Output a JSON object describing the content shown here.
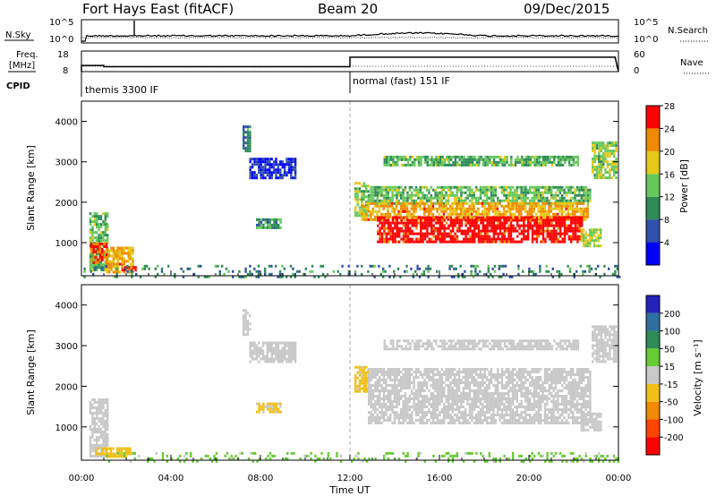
{
  "header": {
    "station": "Fort Hays East (fitACF)",
    "beam": "Beam 20",
    "date": "09/Dec/2015"
  },
  "noise_panel": {
    "left_label": "N.Sky",
    "left_ticks": [
      "10^5",
      "10^0"
    ],
    "right_ticks": [
      "10^5",
      "10^0"
    ],
    "right_label": "N.Search"
  },
  "freq_panel": {
    "left_label_line1": "Freq.",
    "left_label_line2": "[MHz]",
    "left_ticks": [
      "18",
      "8"
    ],
    "right_ticks": [
      "60",
      "0"
    ],
    "right_label": "Nave",
    "freq_steps": [
      {
        "t_start": 0.0,
        "t_end": 1.0,
        "freq_mhz": 11.0
      },
      {
        "t_start": 1.0,
        "t_end": 12.0,
        "freq_mhz": 10.4
      },
      {
        "t_start": 12.0,
        "t_end": 23.85,
        "freq_mhz": 15.0
      }
    ]
  },
  "cpid": {
    "label": "CPID",
    "modes": [
      {
        "start_hour": 0.0,
        "text": "themis 3300 IF"
      },
      {
        "start_hour": 12.0,
        "text": "normal (fast) 151 IF"
      }
    ]
  },
  "chart_data": [
    {
      "type": "heatmap",
      "panel": "power",
      "ylabel": "Slant Range [km]",
      "xlim_hours": [
        0,
        24
      ],
      "ylim_km": [
        180,
        4500
      ],
      "y_ticks": [
        "1000",
        "2000",
        "3000",
        "4000"
      ],
      "colorbar": {
        "label": "Power [dB]",
        "ticks": [
          "4",
          "8",
          "12",
          "16",
          "20",
          "24",
          "28"
        ],
        "range": [
          0,
          30
        ],
        "colors": [
          "#0000ff",
          "#2f4fa8",
          "#2e8b57",
          "#66c85a",
          "#e6c818",
          "#f08a00",
          "#ff0000"
        ]
      },
      "regions": [
        {
          "t": [
            0.35,
            1.2
          ],
          "r": [
            300,
            1750
          ],
          "value": 14
        },
        {
          "t": [
            1.1,
            2.3
          ],
          "r": [
            300,
            900
          ],
          "value": 22
        },
        {
          "t": [
            1.8,
            2.4
          ],
          "r": [
            300,
            420
          ],
          "value": 29
        },
        {
          "t": [
            0.4,
            1.1
          ],
          "r": [
            500,
            1000
          ],
          "value": 26
        },
        {
          "t": [
            7.2,
            7.5
          ],
          "r": [
            3300,
            3900
          ],
          "value": 9
        },
        {
          "t": [
            7.5,
            9.6
          ],
          "r": [
            2600,
            3100
          ],
          "value": 4
        },
        {
          "t": [
            7.8,
            8.9
          ],
          "r": [
            1350,
            1600
          ],
          "value": 12
        },
        {
          "t": [
            12.2,
            12.8
          ],
          "r": [
            1700,
            2500
          ],
          "value": 16
        },
        {
          "t": [
            12.8,
            22.7
          ],
          "r": [
            2000,
            2400
          ],
          "value": 14
        },
        {
          "t": [
            12.5,
            22.6
          ],
          "r": [
            1600,
            2000
          ],
          "value": 22
        },
        {
          "t": [
            13.2,
            22.4
          ],
          "r": [
            1050,
            1650
          ],
          "value": 29
        },
        {
          "t": [
            13.5,
            22.2
          ],
          "r": [
            2900,
            3150
          ],
          "value": 14
        },
        {
          "t": [
            22.3,
            23.2
          ],
          "r": [
            900,
            1350
          ],
          "value": 17
        },
        {
          "t": [
            22.8,
            23.9
          ],
          "r": [
            2600,
            3500
          ],
          "value": 16
        },
        {
          "t": [
            0.0,
            24.0
          ],
          "r": [
            180,
            450
          ],
          "value": 10
        }
      ]
    },
    {
      "type": "heatmap",
      "panel": "velocity",
      "ylabel": "Slant Range [km]",
      "xlabel": "Time UT",
      "xlim_hours": [
        0,
        24
      ],
      "ylim_km": [
        180,
        4500
      ],
      "x_ticks": [
        "00:00",
        "04:00",
        "08:00",
        "12:00",
        "16:00",
        "20:00",
        "00:00"
      ],
      "y_ticks": [
        "1000",
        "2000",
        "3000",
        "4000"
      ],
      "colorbar": {
        "label": "Velocity [m s⁻¹]",
        "ticks": [
          "200",
          "100",
          "50",
          "15",
          "-15",
          "-50",
          "-100",
          "-200"
        ],
        "range": [
          -250,
          250
        ],
        "colors": [
          "#2222bb",
          "#2f6f9f",
          "#2e8b57",
          "#66cc33",
          "#c8c8c8",
          "#f0c018",
          "#f08a00",
          "#ff4400",
          "#ff0000"
        ]
      },
      "regions": [
        {
          "t": [
            0.35,
            1.2
          ],
          "r": [
            300,
            1700
          ],
          "value": 0
        },
        {
          "t": [
            0.6,
            2.2
          ],
          "r": [
            300,
            500
          ],
          "value": 40
        },
        {
          "t": [
            7.2,
            7.5
          ],
          "r": [
            3300,
            3900
          ],
          "value": 0
        },
        {
          "t": [
            7.5,
            9.6
          ],
          "r": [
            2600,
            3100
          ],
          "value": 0
        },
        {
          "t": [
            7.8,
            8.9
          ],
          "r": [
            1350,
            1600
          ],
          "value": 35
        },
        {
          "t": [
            12.2,
            12.8
          ],
          "r": [
            1900,
            2500
          ],
          "value": 40
        },
        {
          "t": [
            12.8,
            22.7
          ],
          "r": [
            1100,
            2450
          ],
          "value": 0
        },
        {
          "t": [
            13.5,
            22.2
          ],
          "r": [
            2900,
            3150
          ],
          "value": 0
        },
        {
          "t": [
            22.3,
            23.2
          ],
          "r": [
            900,
            1350
          ],
          "value": 0
        },
        {
          "t": [
            22.8,
            23.9
          ],
          "r": [
            2600,
            3500
          ],
          "value": 0
        },
        {
          "t": [
            1.0,
            24.0
          ],
          "r": [
            180,
            380
          ],
          "value": -40
        }
      ]
    }
  ]
}
